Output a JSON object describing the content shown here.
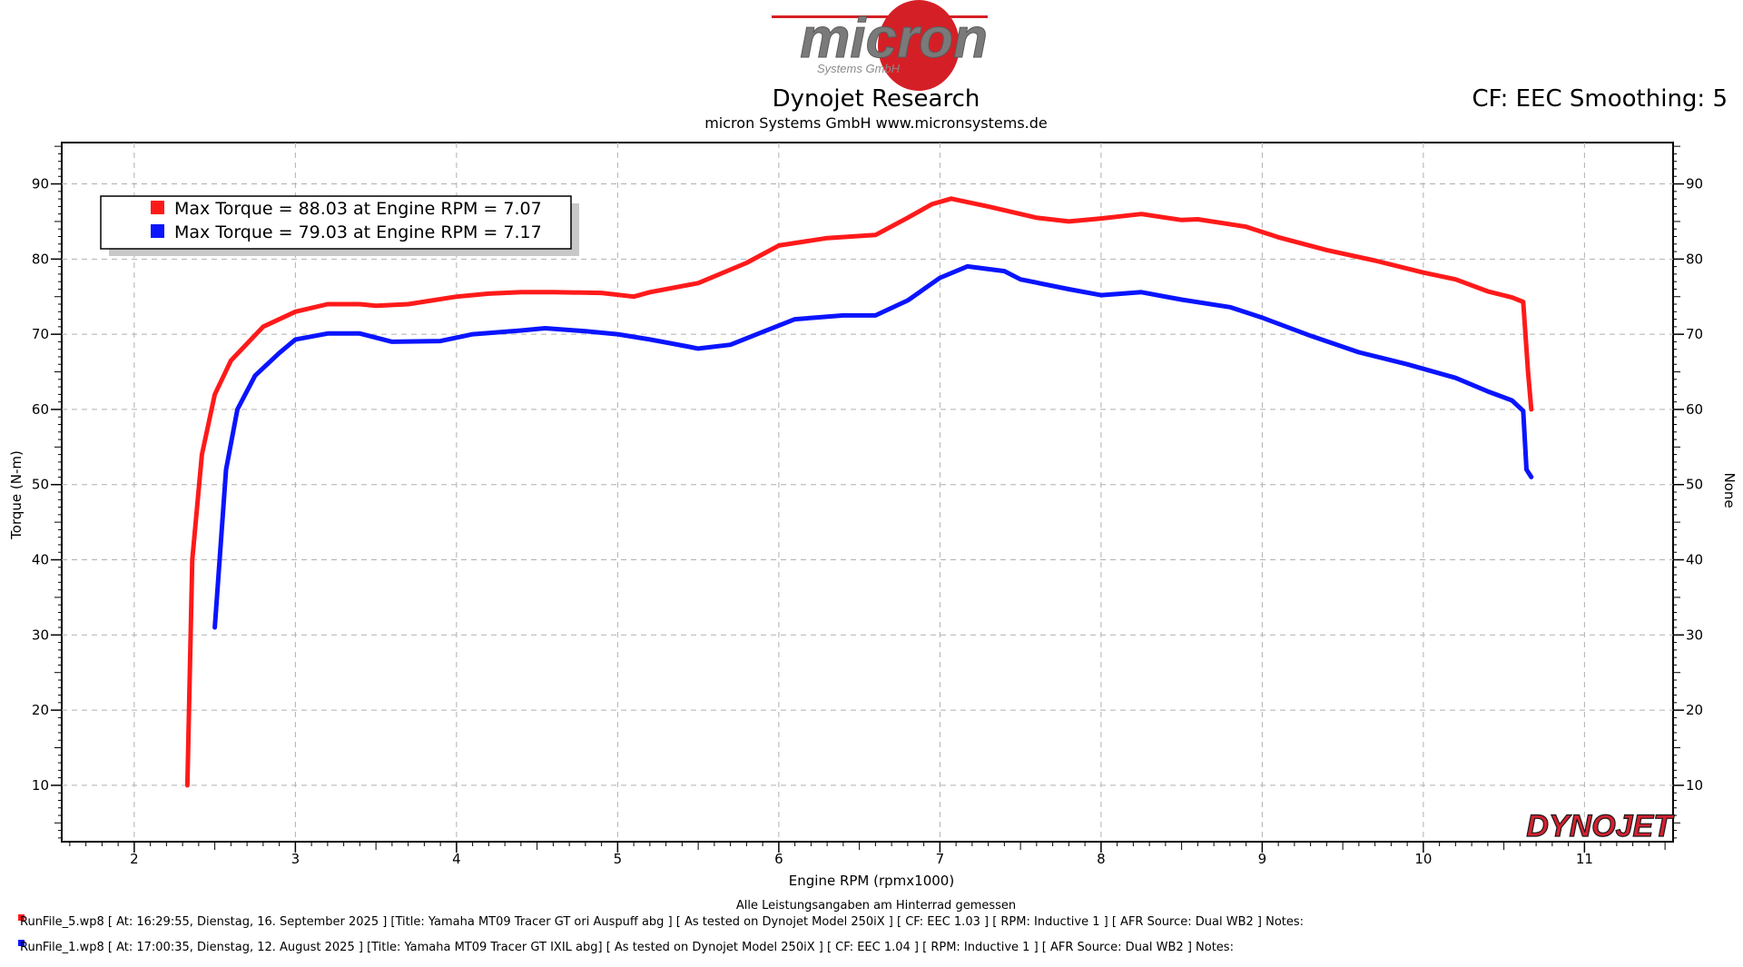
{
  "header": {
    "logo_text": "micron",
    "logo_subtext": "Systems GmbH",
    "title": "Dynojet Research",
    "subtitle": "micron Systems GmbH  www.micronsystems.de",
    "cf_info": "CF: EEC Smoothing: 5"
  },
  "brand": {
    "name": "DYNOJET",
    "color": "#d42030"
  },
  "colors": {
    "red_series": "#ff1a1a",
    "blue_series": "#0a14ff",
    "grid": "#b0b0b0"
  },
  "chart_data": {
    "type": "line",
    "xlabel": "Engine RPM (rpmx1000)",
    "ylabel": "Torque (N-m)",
    "ylabel_right": "None",
    "xlim": [
      1.55,
      11.55
    ],
    "ylim": [
      2.5,
      95.5
    ],
    "x_ticks": [
      "2",
      "3",
      "4",
      "5",
      "6",
      "7",
      "8",
      "9",
      "10",
      "11"
    ],
    "y_ticks": [
      "10",
      "20",
      "30",
      "40",
      "50",
      "60",
      "70",
      "80",
      "90"
    ],
    "grid": true,
    "legend": [
      {
        "text": "Max Torque = 88.03 at Engine RPM = 7.07",
        "color": "#ff1a1a"
      },
      {
        "text": "Max Torque = 79.03 at Engine RPM = 7.17",
        "color": "#0a14ff"
      }
    ],
    "series": [
      {
        "color": "#ff1a1a",
        "points": [
          [
            2.33,
            10
          ],
          [
            2.36,
            40
          ],
          [
            2.42,
            54
          ],
          [
            2.5,
            62
          ],
          [
            2.6,
            66.5
          ],
          [
            2.8,
            71
          ],
          [
            3.0,
            73
          ],
          [
            3.2,
            74
          ],
          [
            3.4,
            74
          ],
          [
            3.5,
            73.8
          ],
          [
            3.7,
            74
          ],
          [
            4.0,
            75
          ],
          [
            4.2,
            75.4
          ],
          [
            4.4,
            75.6
          ],
          [
            4.6,
            75.6
          ],
          [
            4.9,
            75.5
          ],
          [
            5.1,
            75
          ],
          [
            5.2,
            75.6
          ],
          [
            5.5,
            76.8
          ],
          [
            5.8,
            79.5
          ],
          [
            6.0,
            81.8
          ],
          [
            6.3,
            82.8
          ],
          [
            6.6,
            83.2
          ],
          [
            6.8,
            85.5
          ],
          [
            6.95,
            87.3
          ],
          [
            7.07,
            88.03
          ],
          [
            7.3,
            87
          ],
          [
            7.6,
            85.5
          ],
          [
            7.8,
            85
          ],
          [
            8.0,
            85.4
          ],
          [
            8.25,
            86
          ],
          [
            8.5,
            85.2
          ],
          [
            8.6,
            85.3
          ],
          [
            8.9,
            84.3
          ],
          [
            9.1,
            82.9
          ],
          [
            9.4,
            81.2
          ],
          [
            9.7,
            79.8
          ],
          [
            10.0,
            78.2
          ],
          [
            10.2,
            77.3
          ],
          [
            10.4,
            75.7
          ],
          [
            10.55,
            74.9
          ],
          [
            10.62,
            74.3
          ],
          [
            10.65,
            65
          ],
          [
            10.67,
            60
          ]
        ]
      },
      {
        "color": "#0a14ff",
        "points": [
          [
            2.5,
            31
          ],
          [
            2.57,
            52
          ],
          [
            2.64,
            60
          ],
          [
            2.75,
            64.5
          ],
          [
            2.9,
            67.5
          ],
          [
            3.0,
            69.3
          ],
          [
            3.2,
            70.1
          ],
          [
            3.4,
            70.1
          ],
          [
            3.6,
            69
          ],
          [
            3.9,
            69.1
          ],
          [
            4.1,
            70
          ],
          [
            4.4,
            70.5
          ],
          [
            4.55,
            70.8
          ],
          [
            4.8,
            70.4
          ],
          [
            5.0,
            70
          ],
          [
            5.2,
            69.3
          ],
          [
            5.4,
            68.5
          ],
          [
            5.5,
            68.1
          ],
          [
            5.7,
            68.6
          ],
          [
            5.9,
            70.3
          ],
          [
            6.1,
            72
          ],
          [
            6.4,
            72.5
          ],
          [
            6.6,
            72.5
          ],
          [
            6.8,
            74.5
          ],
          [
            7.0,
            77.5
          ],
          [
            7.17,
            79.03
          ],
          [
            7.4,
            78.4
          ],
          [
            7.5,
            77.3
          ],
          [
            7.8,
            76
          ],
          [
            8.0,
            75.2
          ],
          [
            8.25,
            75.6
          ],
          [
            8.5,
            74.6
          ],
          [
            8.8,
            73.6
          ],
          [
            9.0,
            72.2
          ],
          [
            9.3,
            69.8
          ],
          [
            9.6,
            67.6
          ],
          [
            9.9,
            66
          ],
          [
            10.2,
            64.2
          ],
          [
            10.4,
            62.4
          ],
          [
            10.55,
            61.2
          ],
          [
            10.62,
            59.8
          ],
          [
            10.64,
            52
          ],
          [
            10.67,
            51
          ]
        ]
      }
    ]
  },
  "footer": {
    "note": "Alle Leistungsangaben am Hinterrad gemessen",
    "runs": [
      {
        "color": "#ff1a1a",
        "text": "RunFile_5.wp8  [  At:  16:29:55,  Dienstag,  16.  September  2025  ]  [Title:  Yamaha  MT09  Tracer  GT  ori  Auspuff  abg  ]   [  As  tested  on  Dynojet  Model  250iX  ]  [  CF:  EEC  1.03  ]  [  RPM:  Inductive  1  ]  [  AFR  Source:  Dual  WB2  ]  Notes:"
      },
      {
        "color": "#0a14ff",
        "text": "RunFile_1.wp8  [  At:  17:00:35,  Dienstag,  12.  August  2025  ]  [Title:  Yamaha  MT09  Tracer  GT  IXIL  abg]   [  As  tested  on  Dynojet  Model  250iX  ]  [  CF:  EEC  1.04  ]  [  RPM:  Inductive  1  ]  [  AFR  Source:  Dual  WB2  ]  Notes:"
      }
    ]
  }
}
